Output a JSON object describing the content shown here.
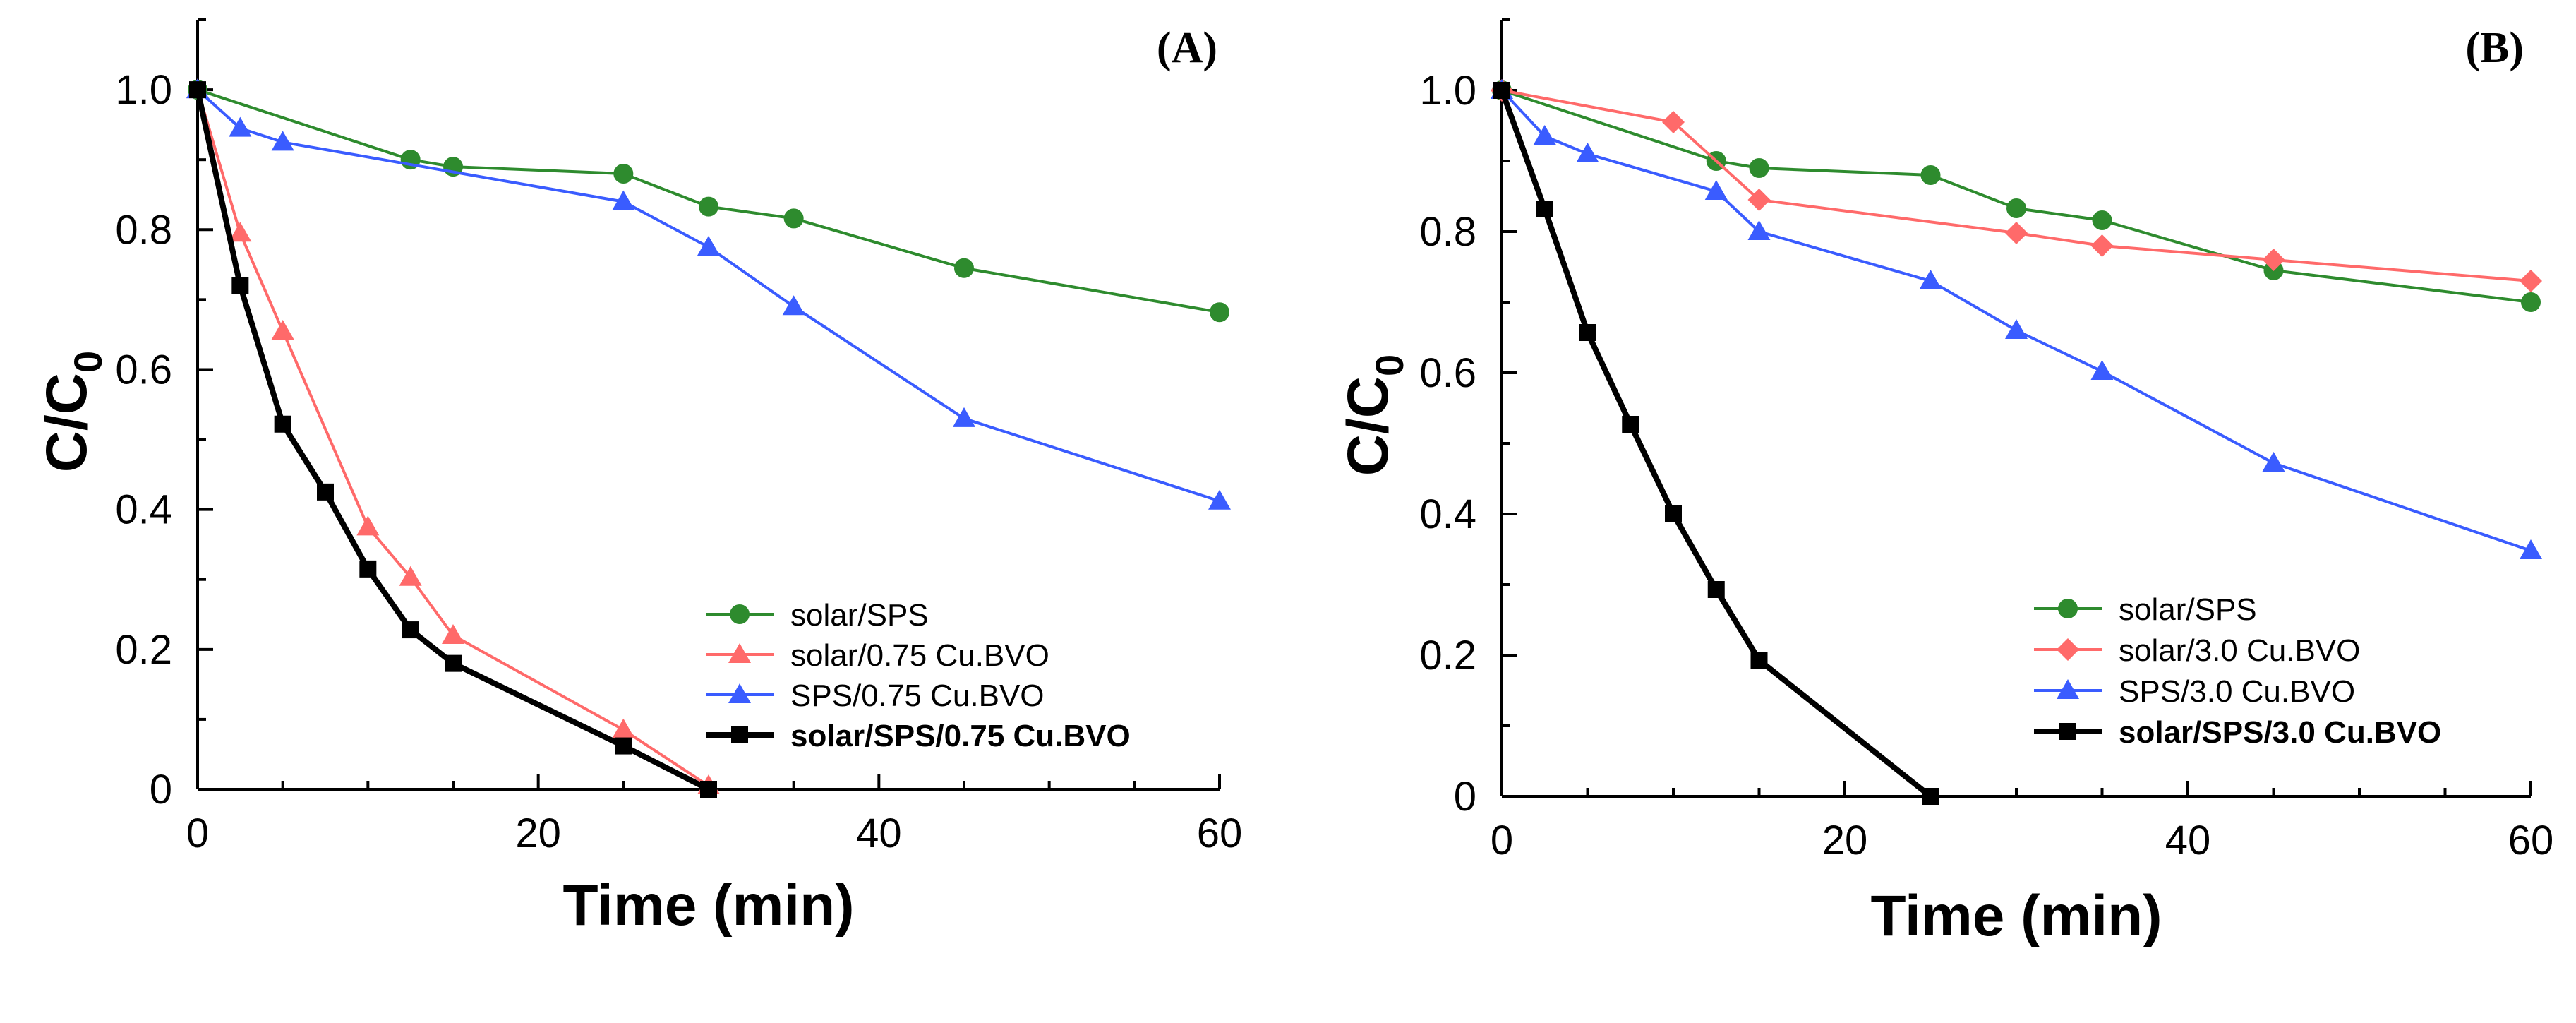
{
  "chart_data": [
    {
      "type": "line",
      "panel_label": "(A)",
      "xlabel": "Time (min)",
      "ylabel_main": "C/C",
      "ylabel_sub": "0",
      "xlim": [
        0,
        60
      ],
      "ylim": [
        0,
        1.1
      ],
      "xticks": [
        0,
        20,
        40,
        60
      ],
      "xtick_labels": [
        "0",
        "20",
        "40",
        "60"
      ],
      "yticks": [
        0,
        0.2,
        0.4,
        0.6,
        0.8,
        1.0
      ],
      "ytick_labels": [
        "0",
        "0.2",
        "0.4",
        "0.6",
        "0.8",
        "1.0"
      ],
      "legend_position": "bottom-right",
      "series": [
        {
          "name": "solar/SPS",
          "color": "#2e8b2e",
          "marker": "circle",
          "bold": false,
          "x": [
            0,
            12.5,
            15,
            25,
            30,
            35,
            45,
            60
          ],
          "y": [
            1.0,
            0.9,
            0.89,
            0.88,
            0.833,
            0.816,
            0.745,
            0.682
          ]
        },
        {
          "name": "solar/0.75 Cu.BVO",
          "color": "#ff6a6a",
          "marker": "triangle",
          "bold": false,
          "x": [
            0,
            2.5,
            5,
            10,
            12.5,
            15,
            25,
            30
          ],
          "y": [
            1.0,
            0.795,
            0.655,
            0.375,
            0.303,
            0.22,
            0.085,
            0.005
          ]
        },
        {
          "name": "SPS/0.75 Cu.BVO",
          "color": "#3a5cff",
          "marker": "triangle",
          "bold": false,
          "x": [
            0,
            2.5,
            5,
            25,
            30,
            35,
            45,
            60
          ],
          "y": [
            1.0,
            0.945,
            0.925,
            0.84,
            0.775,
            0.69,
            0.53,
            0.412
          ]
        },
        {
          "name": "solar/SPS/0.75 Cu.BVO",
          "color": "#000000",
          "marker": "square",
          "bold": true,
          "x": [
            0,
            2.5,
            5,
            7.5,
            10,
            12.5,
            15,
            25,
            30
          ],
          "y": [
            1.0,
            0.72,
            0.522,
            0.425,
            0.315,
            0.228,
            0.18,
            0.062,
            0.0
          ]
        }
      ]
    },
    {
      "type": "line",
      "panel_label": "(B)",
      "xlabel": "Time (min)",
      "ylabel_main": "C/C",
      "ylabel_sub": "0",
      "xlim": [
        0,
        60
      ],
      "ylim": [
        0,
        1.1
      ],
      "xticks": [
        0,
        20,
        40,
        60
      ],
      "xtick_labels": [
        "0",
        "20",
        "40",
        "60"
      ],
      "yticks": [
        0,
        0.2,
        0.4,
        0.6,
        0.8,
        1.0
      ],
      "ytick_labels": [
        "0",
        "0.2",
        "0.4",
        "0.6",
        "0.8",
        "1.0"
      ],
      "legend_position": "bottom-right",
      "series": [
        {
          "name": "solar/SPS",
          "color": "#2e8b2e",
          "marker": "circle",
          "bold": false,
          "x": [
            0,
            12.5,
            15,
            25,
            30,
            35,
            45,
            60
          ],
          "y": [
            1.0,
            0.9,
            0.89,
            0.88,
            0.833,
            0.816,
            0.745,
            0.7
          ]
        },
        {
          "name": "solar/3.0 Cu.BVO",
          "color": "#ff6a6a",
          "marker": "diamond",
          "bold": false,
          "x": [
            0,
            10,
            15,
            30,
            35,
            45,
            60
          ],
          "y": [
            1.0,
            0.955,
            0.845,
            0.798,
            0.78,
            0.76,
            0.73
          ]
        },
        {
          "name": "SPS/3.0 Cu.BVO",
          "color": "#3a5cff",
          "marker": "triangle",
          "bold": false,
          "x": [
            0,
            2.5,
            5,
            12.5,
            15,
            25,
            30,
            35,
            45,
            60
          ],
          "y": [
            1.0,
            0.935,
            0.91,
            0.857,
            0.8,
            0.73,
            0.66,
            0.602,
            0.472,
            0.348
          ]
        },
        {
          "name": "solar/SPS/3.0 Cu.BVO",
          "color": "#000000",
          "marker": "square",
          "bold": true,
          "x": [
            0,
            2.5,
            5,
            7.5,
            10,
            12.5,
            15,
            25
          ],
          "y": [
            1.0,
            0.832,
            0.657,
            0.527,
            0.4,
            0.293,
            0.193,
            0.0
          ]
        }
      ]
    }
  ]
}
